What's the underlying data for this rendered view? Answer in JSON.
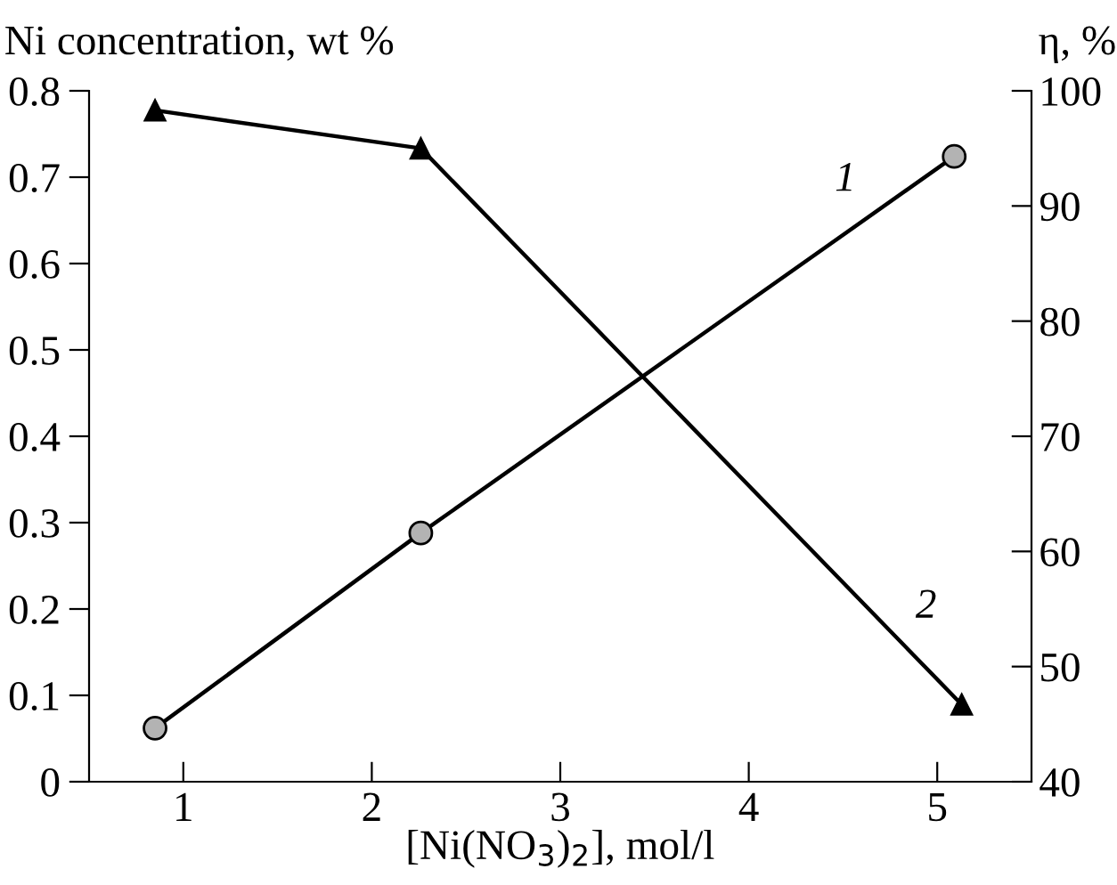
{
  "chart_data": {
    "type": "line",
    "xlabel": "[Ni(NO$_{3}$)$_{2}$], mol/l",
    "ylabel": "Ni concentration, wt %",
    "y2label": "η, %",
    "xlim": [
      0.5,
      5.5
    ],
    "xticks": [
      1,
      2,
      3,
      4,
      5
    ],
    "ylim": [
      0,
      0.8
    ],
    "yticks": [
      0,
      0.1,
      0.2,
      0.3,
      0.4,
      0.5,
      0.6,
      0.7,
      0.8
    ],
    "y2lim": [
      40,
      100
    ],
    "y2ticks": [
      40,
      50,
      60,
      70,
      80,
      90,
      100
    ],
    "grid": false,
    "legend": false,
    "series": [
      {
        "name": "1",
        "color": "#000000",
        "marker": "circle",
        "x": [
          0.85,
          2.26,
          5.09
        ],
        "values": [
          0.062,
          0.288,
          0.724
        ]
      },
      {
        "name": "2",
        "color": "#000000",
        "marker": "triangle",
        "axis": "y2",
        "x": [
          0.85,
          2.26,
          5.13
        ],
        "values": [
          98.3,
          95.0,
          46.7
        ]
      }
    ]
  }
}
